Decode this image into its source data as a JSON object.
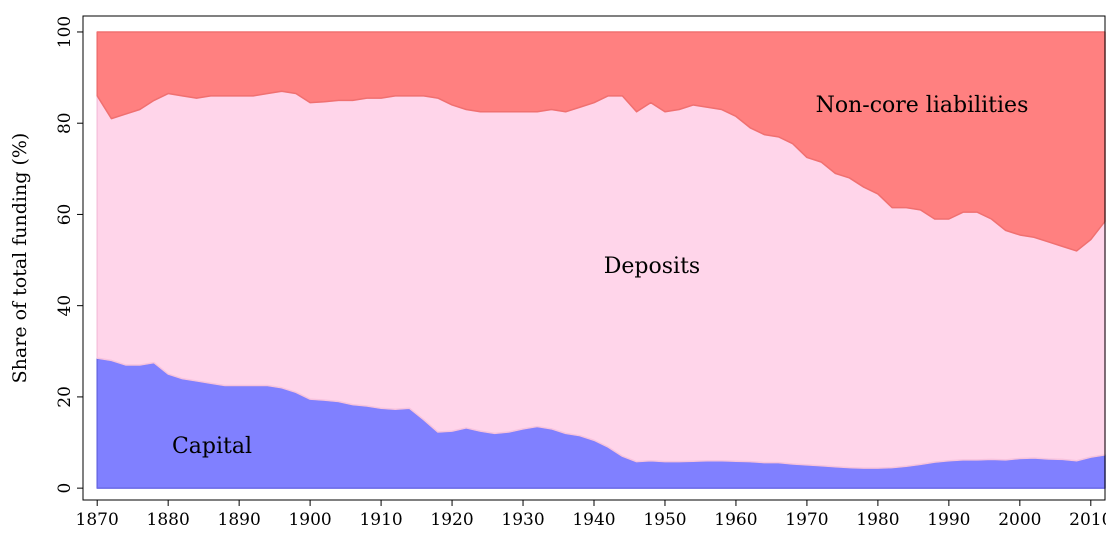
{
  "chart_data": {
    "type": "stacked-area",
    "y_label": "Share of total funding (%)",
    "x": [
      1870,
      1872,
      1874,
      1876,
      1878,
      1880,
      1882,
      1884,
      1886,
      1888,
      1890,
      1892,
      1894,
      1896,
      1898,
      1900,
      1902,
      1904,
      1906,
      1908,
      1910,
      1912,
      1914,
      1916,
      1918,
      1920,
      1922,
      1924,
      1926,
      1928,
      1930,
      1932,
      1934,
      1936,
      1938,
      1940,
      1942,
      1944,
      1946,
      1948,
      1950,
      1952,
      1954,
      1956,
      1958,
      1960,
      1962,
      1964,
      1966,
      1968,
      1970,
      1972,
      1974,
      1976,
      1978,
      1980,
      1982,
      1984,
      1986,
      1988,
      1990,
      1992,
      1994,
      1996,
      1998,
      2000,
      2002,
      2004,
      2006,
      2008,
      2010,
      2012
    ],
    "series": [
      {
        "name": "Capital",
        "color": "#8080ff",
        "stroke": "#6a6ae6",
        "values": [
          28.5,
          28,
          27,
          27,
          27.5,
          25,
          24,
          23.5,
          23,
          22.5,
          22.5,
          22.5,
          22.5,
          22,
          21,
          19.5,
          19.3,
          19,
          18.3,
          18,
          17.5,
          17.3,
          17.5,
          15,
          12.3,
          12.5,
          13.2,
          12.5,
          12,
          12.3,
          13,
          13.5,
          13,
          12,
          11.5,
          10.5,
          9,
          7,
          5.8,
          6,
          5.8,
          5.8,
          5.9,
          6,
          6,
          5.9,
          5.8,
          5.6,
          5.6,
          5.3,
          5.1,
          4.9,
          4.7,
          4.5,
          4.4,
          4.4,
          4.5,
          4.8,
          5.2,
          5.7,
          6,
          6.2,
          6.2,
          6.3,
          6.2,
          6.5,
          6.6,
          6.4,
          6.3,
          6,
          6.8,
          7.3
        ]
      },
      {
        "name": "Deposits",
        "color": "#ffd5ea",
        "stroke": "#f7c3dd",
        "values": [
          57.5,
          53,
          55,
          56,
          57.5,
          61.5,
          62,
          62,
          63,
          63.5,
          63.5,
          63.5,
          64,
          65,
          65.5,
          65,
          65.4,
          66,
          66.7,
          67.5,
          68,
          68.7,
          68.5,
          71,
          73.2,
          71.5,
          69.8,
          70,
          70.5,
          70.2,
          69.5,
          69,
          70,
          70.5,
          72,
          74,
          77,
          79,
          76.7,
          78.5,
          76.7,
          77.2,
          78.1,
          77.5,
          77,
          75.6,
          73.2,
          71.9,
          71.4,
          70.2,
          67.4,
          66.6,
          64.3,
          63.5,
          61.6,
          60.1,
          57,
          56.7,
          55.8,
          53.3,
          53,
          54.3,
          54.3,
          52.7,
          50.3,
          49,
          48.4,
          47.6,
          46.7,
          46,
          47.7,
          51.2
        ]
      },
      {
        "name": "Non-core liabilities",
        "color": "#ff8080",
        "stroke": "#f07070",
        "values": [
          14,
          19,
          18,
          17,
          15,
          13.5,
          14,
          14.5,
          14,
          14,
          14,
          14,
          13.5,
          13,
          13.5,
          15.5,
          15.3,
          15,
          15,
          14.5,
          14.5,
          14,
          14,
          14,
          14.5,
          16,
          17,
          17.5,
          17.5,
          17.5,
          17.5,
          17.5,
          17,
          17.5,
          16.5,
          15.5,
          14,
          14,
          17.5,
          15.5,
          17.5,
          17,
          16,
          16.5,
          17,
          18.5,
          21,
          22.5,
          23,
          24.5,
          27.5,
          28.5,
          31,
          32,
          34,
          35.5,
          38.5,
          38.5,
          39,
          41,
          41,
          39.5,
          39.5,
          41,
          43.5,
          44.5,
          45,
          46,
          47,
          48,
          45.5,
          41.5
        ]
      }
    ],
    "xlim": [
      1868,
      2012
    ],
    "ylim": [
      -2.6,
      103.5
    ],
    "xticks": [
      1870,
      1880,
      1890,
      1900,
      1910,
      1920,
      1930,
      1940,
      1950,
      1960,
      1970,
      1980,
      1990,
      2000,
      2010
    ],
    "yticks": [
      0,
      20,
      40,
      60,
      80,
      100
    ]
  }
}
